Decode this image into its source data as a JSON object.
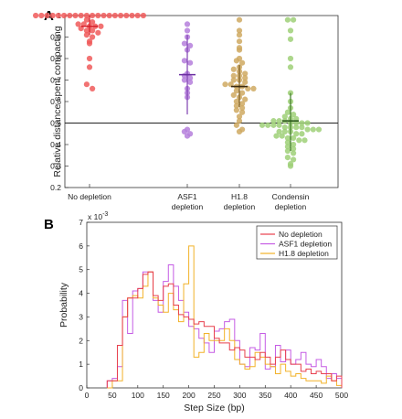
{
  "panels": {
    "a": "A",
    "b": "B"
  },
  "chart_data": [
    {
      "type": "scatter",
      "subtype": "beeswarm",
      "xlabel": "",
      "ylabel": "Relative distance spent compacting",
      "ylim": [
        0.2,
        1.0
      ],
      "yticks": [
        "0.2",
        "0.3",
        "0.4",
        "0.5",
        "0.6",
        "0.7",
        "0.8",
        "0.9",
        "1"
      ],
      "reference_line_y": 0.5,
      "grid": false,
      "categories": [
        {
          "label": [
            "No depletion"
          ],
          "color": "#f05a5a",
          "mean": 0.95,
          "err_low": 0.91,
          "err_high": 1.0,
          "values": [
            1,
            1,
            1,
            1,
            1,
            1,
            1,
            1,
            1,
            1,
            1,
            1,
            1,
            1,
            1,
            1,
            1,
            1,
            1,
            1,
            0.98,
            0.97,
            0.96,
            0.96,
            0.95,
            0.95,
            0.95,
            0.94,
            0.93,
            0.93,
            0.92,
            0.91,
            0.9,
            0.88,
            0.87,
            0.8,
            0.76,
            0.68,
            0.66
          ]
        },
        {
          "label": [
            "ASF1",
            "depletion"
          ],
          "color": "#b57fdc",
          "mean": 0.725,
          "err_low": 0.54,
          "err_high": 0.91,
          "values": [
            0.96,
            0.93,
            0.9,
            0.87,
            0.86,
            0.84,
            0.79,
            0.78,
            0.73,
            0.72,
            0.71,
            0.7,
            0.69,
            0.66,
            0.64,
            0.62,
            0.47,
            0.46,
            0.45,
            0.44
          ]
        },
        {
          "label": [
            "H1.8",
            "depletion"
          ],
          "color": "#cfa962",
          "mean": 0.67,
          "err_low": 0.575,
          "err_high": 0.77,
          "values": [
            0.98,
            0.93,
            0.91,
            0.88,
            0.85,
            0.84,
            0.8,
            0.79,
            0.78,
            0.76,
            0.75,
            0.74,
            0.73,
            0.72,
            0.72,
            0.71,
            0.7,
            0.7,
            0.69,
            0.68,
            0.68,
            0.67,
            0.67,
            0.66,
            0.66,
            0.65,
            0.64,
            0.63,
            0.62,
            0.61,
            0.6,
            0.59,
            0.58,
            0.57,
            0.56,
            0.55,
            0.53,
            0.51,
            0.49,
            0.47,
            0.46
          ]
        },
        {
          "label": [
            "Condensin",
            "depletion"
          ],
          "color": "#9fd078",
          "mean": 0.51,
          "err_low": 0.37,
          "err_high": 0.64,
          "values": [
            0.98,
            0.98,
            0.93,
            0.89,
            0.8,
            0.76,
            0.64,
            0.6,
            0.57,
            0.55,
            0.54,
            0.53,
            0.52,
            0.52,
            0.51,
            0.51,
            0.51,
            0.5,
            0.5,
            0.5,
            0.5,
            0.49,
            0.49,
            0.49,
            0.49,
            0.48,
            0.48,
            0.48,
            0.48,
            0.47,
            0.47,
            0.47,
            0.46,
            0.46,
            0.46,
            0.45,
            0.45,
            0.44,
            0.44,
            0.43,
            0.43,
            0.42,
            0.42,
            0.41,
            0.4,
            0.39,
            0.38,
            0.37,
            0.36,
            0.34,
            0.33,
            0.31,
            0.3
          ]
        }
      ]
    },
    {
      "type": "line",
      "subtype": "step-histogram",
      "xlabel": "Step Size (bp)",
      "ylabel": "Probability",
      "y_exponent_label": "x 10",
      "y_exponent": "-3",
      "xlim": [
        0,
        500
      ],
      "ylim": [
        0,
        0.007
      ],
      "xticks": [
        "0",
        "50",
        "100",
        "150",
        "200",
        "250",
        "300",
        "350",
        "400",
        "450",
        "500"
      ],
      "yticks": [
        "0",
        "1",
        "2",
        "3",
        "4",
        "5",
        "6",
        "7"
      ],
      "bin_width": 10,
      "legend_position": "top-right",
      "series": [
        {
          "name": "No depletion",
          "color": "#e8404e",
          "bins": [
            [
              40,
              0.3
            ],
            [
              50,
              0.3
            ],
            [
              60,
              1.8
            ],
            [
              70,
              3.0
            ],
            [
              80,
              3.8
            ],
            [
              90,
              3.8
            ],
            [
              100,
              4.2
            ],
            [
              110,
              4.8
            ],
            [
              120,
              4.9
            ],
            [
              130,
              3.9
            ],
            [
              140,
              3.7
            ],
            [
              150,
              4.3
            ],
            [
              160,
              4.4
            ],
            [
              170,
              3.5
            ],
            [
              180,
              3.1
            ],
            [
              190,
              3.0
            ],
            [
              200,
              2.9
            ],
            [
              210,
              2.7
            ],
            [
              220,
              2.8
            ],
            [
              230,
              2.6
            ],
            [
              240,
              2.6
            ],
            [
              250,
              2.1
            ],
            [
              260,
              1.9
            ],
            [
              270,
              1.9
            ],
            [
              280,
              1.6
            ],
            [
              290,
              1.7
            ],
            [
              300,
              1.6
            ],
            [
              310,
              1.3
            ],
            [
              320,
              1.3
            ],
            [
              330,
              1.2
            ],
            [
              340,
              1.5
            ],
            [
              350,
              1.3
            ],
            [
              360,
              1.0
            ],
            [
              370,
              1.3
            ],
            [
              380,
              1.6
            ],
            [
              390,
              1.2
            ],
            [
              400,
              1.0
            ],
            [
              410,
              1.0
            ],
            [
              420,
              0.7
            ],
            [
              430,
              0.8
            ],
            [
              440,
              0.6
            ],
            [
              450,
              0.7
            ],
            [
              460,
              0.6
            ],
            [
              470,
              0.6
            ],
            [
              480,
              0.3
            ],
            [
              490,
              0.5
            ]
          ]
        },
        {
          "name": "ASF1 depletion",
          "color": "#c55ce4",
          "bins": [
            [
              40,
              0.3
            ],
            [
              50,
              0.4
            ],
            [
              60,
              0.9
            ],
            [
              70,
              3.7
            ],
            [
              80,
              2.3
            ],
            [
              90,
              4.1
            ],
            [
              100,
              4.2
            ],
            [
              110,
              4.9
            ],
            [
              120,
              4.9
            ],
            [
              130,
              3.7
            ],
            [
              140,
              3.2
            ],
            [
              150,
              4.5
            ],
            [
              160,
              5.2
            ],
            [
              170,
              4.3
            ],
            [
              180,
              3.7
            ],
            [
              190,
              3.2
            ],
            [
              200,
              2.6
            ],
            [
              210,
              2.5
            ],
            [
              220,
              2.1
            ],
            [
              230,
              1.9
            ],
            [
              240,
              1.5
            ],
            [
              250,
              2.4
            ],
            [
              260,
              2.5
            ],
            [
              270,
              2.8
            ],
            [
              280,
              2.9
            ],
            [
              290,
              2.0
            ],
            [
              300,
              1.0
            ],
            [
              310,
              0.9
            ],
            [
              320,
              1.7
            ],
            [
              330,
              1.6
            ],
            [
              340,
              2.3
            ],
            [
              350,
              0.8
            ],
            [
              360,
              0.9
            ],
            [
              370,
              1.8
            ],
            [
              380,
              1.1
            ],
            [
              390,
              1.6
            ],
            [
              400,
              1.0
            ],
            [
              410,
              1.2
            ],
            [
              420,
              1.5
            ],
            [
              430,
              1.0
            ],
            [
              440,
              0.9
            ],
            [
              450,
              1.2
            ],
            [
              460,
              0.9
            ],
            [
              470,
              0.4
            ],
            [
              480,
              0.6
            ],
            [
              490,
              0.4
            ]
          ]
        },
        {
          "name": "H1.8 depletion",
          "color": "#f2b229",
          "bins": [
            [
              40,
              0.0
            ],
            [
              50,
              0.3
            ],
            [
              60,
              0.3
            ],
            [
              70,
              3.0
            ],
            [
              80,
              3.8
            ],
            [
              90,
              3.9
            ],
            [
              100,
              3.8
            ],
            [
              110,
              4.3
            ],
            [
              120,
              4.9
            ],
            [
              130,
              3.8
            ],
            [
              140,
              3.5
            ],
            [
              150,
              3.2
            ],
            [
              160,
              4.0
            ],
            [
              170,
              3.3
            ],
            [
              180,
              2.8
            ],
            [
              190,
              4.4
            ],
            [
              200,
              6.0
            ],
            [
              210,
              1.3
            ],
            [
              220,
              1.5
            ],
            [
              230,
              2.3
            ],
            [
              240,
              2.0
            ],
            [
              250,
              2.0
            ],
            [
              260,
              2.0
            ],
            [
              270,
              2.5
            ],
            [
              280,
              2.0
            ],
            [
              290,
              1.2
            ],
            [
              300,
              1.0
            ],
            [
              310,
              0.8
            ],
            [
              320,
              0.9
            ],
            [
              330,
              1.5
            ],
            [
              340,
              1.3
            ],
            [
              350,
              1.0
            ],
            [
              360,
              0.9
            ],
            [
              370,
              0.6
            ],
            [
              380,
              1.0
            ],
            [
              390,
              0.7
            ],
            [
              400,
              0.5
            ],
            [
              410,
              0.6
            ],
            [
              420,
              0.4
            ],
            [
              430,
              0.3
            ],
            [
              440,
              0.3
            ],
            [
              450,
              0.3
            ],
            [
              460,
              0.2
            ],
            [
              470,
              0.5
            ],
            [
              480,
              0.3
            ],
            [
              490,
              0.1
            ]
          ]
        }
      ]
    }
  ]
}
